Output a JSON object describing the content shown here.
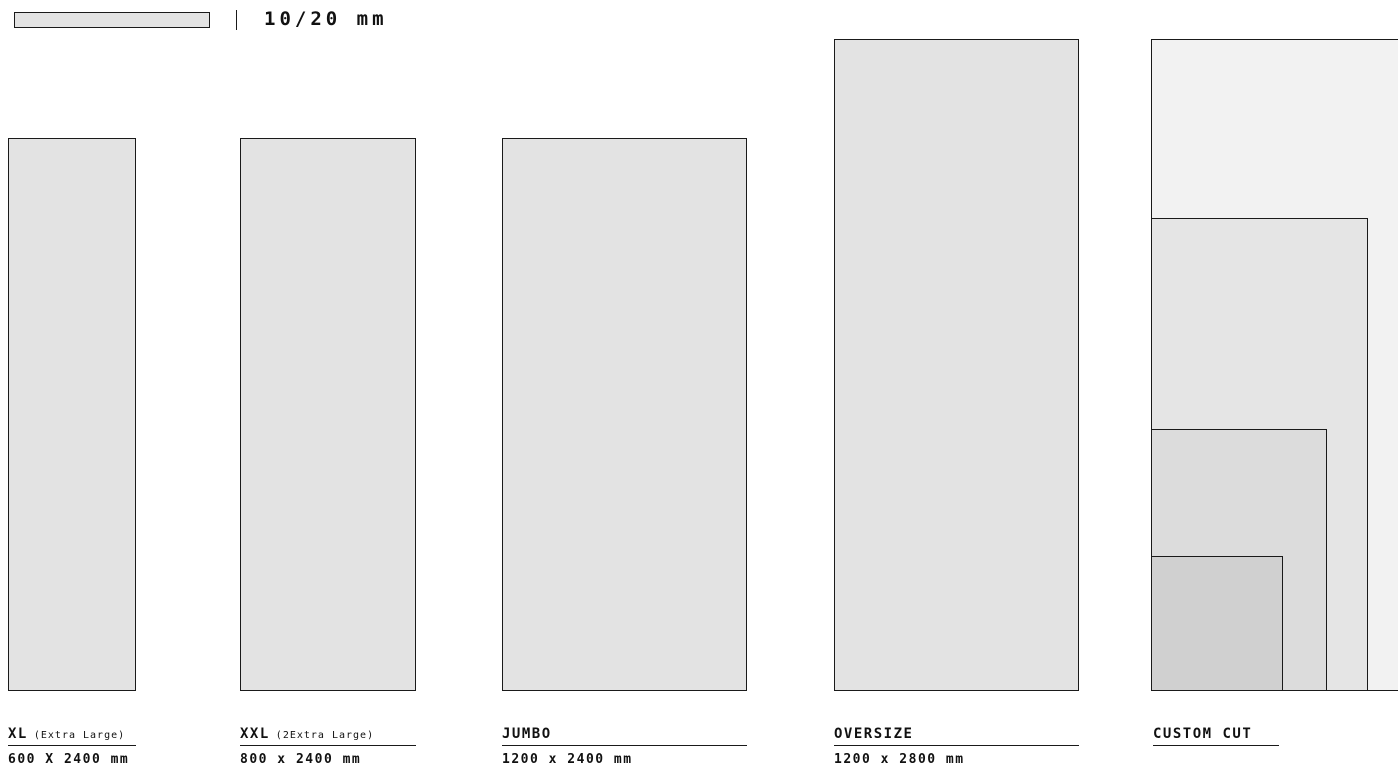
{
  "thickness": {
    "label": "10/20 mm"
  },
  "formats": [
    {
      "name": "XL",
      "subtitle": "(Extra Large)",
      "dimensions": "600 X 2400 mm"
    },
    {
      "name": "XXL",
      "subtitle": "(2Extra Large)",
      "dimensions": "800 x 2400 mm"
    },
    {
      "name": "JUMBO",
      "subtitle": "",
      "dimensions": "1200 x 2400 mm"
    },
    {
      "name": "OVERSIZE",
      "subtitle": "",
      "dimensions": "1200 x 2800 mm"
    },
    {
      "name": "CUSTOM CUT",
      "subtitle": "",
      "dimensions": ""
    }
  ],
  "colors": {
    "slab_fill": "#e3e3e3",
    "outline": "#1a1a1a",
    "background": "#ffffff"
  }
}
